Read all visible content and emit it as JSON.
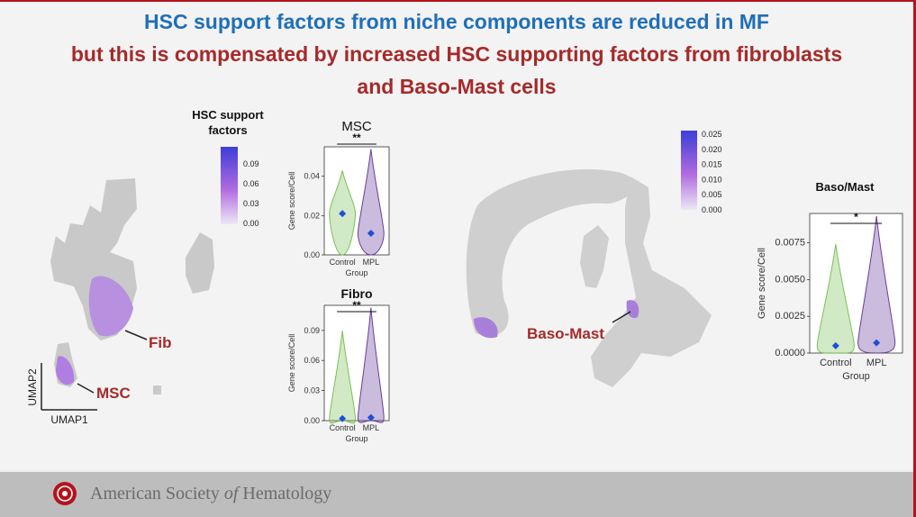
{
  "title": {
    "line1": "HSC support factors  from niche components are reduced in MF",
    "line2": "but this is compensated by increased HSC supporting factors from fibroblasts",
    "line3": "and Baso-Mast cells"
  },
  "umap_left": {
    "legend_title_line1": "HSC support",
    "legend_title_line2": "factors",
    "legend_ticks": [
      "0.09",
      "0.06",
      "0.03",
      "0.00"
    ],
    "label_fib": "Fib",
    "label_msc": "MSC",
    "axis_x": "UMAP1",
    "axis_y": "UMAP2"
  },
  "umap_right": {
    "legend_ticks": [
      "0.025",
      "0.020",
      "0.015",
      "0.010",
      "0.005",
      "0.000"
    ],
    "label_baso_mast": "Baso-Mast"
  },
  "footer": {
    "org_part1": "American Society ",
    "org_part2": "of",
    "org_part3": " Hematology"
  },
  "colors": {
    "title_blue": "#1f6fb8",
    "title_red": "#a52a2a",
    "control": "#7bbf5a",
    "mpl": "#6a3d9a",
    "mean_marker": "#1f4fd8"
  },
  "chart_data": [
    {
      "type": "violin",
      "title": "MSC",
      "categories": [
        "Control",
        "MPL"
      ],
      "xlabel": "Group",
      "ylabel": "Gene score/Cell",
      "ylim": [
        0,
        0.055
      ],
      "yticks": [
        "0.00",
        "0.02",
        "0.04"
      ],
      "significance": "**",
      "means": [
        0.021,
        0.011
      ]
    },
    {
      "type": "violin",
      "title": "Fibro",
      "categories": [
        "Control",
        "MPL"
      ],
      "xlabel": "Group",
      "ylabel": "Gene score/Cell",
      "ylim": [
        0,
        0.115
      ],
      "yticks": [
        "0.00",
        "0.03",
        "0.06",
        "0.09"
      ],
      "significance": "**",
      "means": [
        0.002,
        0.003
      ]
    },
    {
      "type": "violin",
      "title": "Baso/Mast",
      "categories": [
        "Control",
        "MPL"
      ],
      "xlabel": "Group",
      "ylabel": "Gene score/Cell",
      "ylim": [
        0,
        0.0095
      ],
      "yticks": [
        "0.0000",
        "0.0025",
        "0.0050",
        "0.0075"
      ],
      "significance": "*",
      "means": [
        0.0005,
        0.0007
      ]
    }
  ]
}
